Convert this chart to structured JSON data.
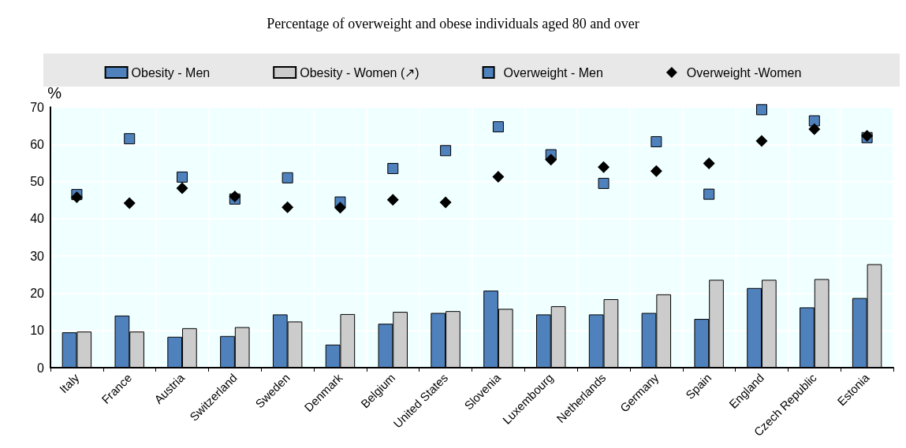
{
  "chart_data": {
    "type": "bar",
    "title": "Percentage of overweight and obese individuals aged 80 and over",
    "ylabel": "%",
    "categories": [
      "Italy",
      "France",
      "Austria",
      "Switzerland",
      "Sweden",
      "Denmark",
      "Belgium",
      "United States",
      "Slovenia",
      "Luxembourg",
      "Netherlands",
      "Germany",
      "Spain",
      "England",
      "Czech Republic",
      "Estonia"
    ],
    "series": [
      {
        "name": "Obesity - Men",
        "color": "#4f81bd",
        "values": [
          9.5,
          14,
          8.3,
          8.5,
          14.3,
          6.2,
          11.8,
          14.7,
          20.7,
          14.3,
          14.3,
          14.7,
          13.1,
          21.4,
          16.2,
          18.7
        ]
      },
      {
        "name": "Obesity - Women (↗)",
        "color": "#cccccc",
        "values": [
          9.7,
          9.7,
          10.6,
          10.9,
          12.4,
          14.4,
          15.0,
          15.2,
          15.8,
          16.5,
          18.4,
          19.7,
          23.6,
          23.6,
          23.8,
          27.8
        ]
      },
      {
        "name": "Overweight - Men",
        "type": "scatter",
        "marker": "square",
        "color": "#4f81bd",
        "values": [
          46.5,
          61.5,
          51.2,
          45.3,
          51.0,
          44.5,
          53.5,
          58.3,
          64.7,
          57.2,
          49.5,
          60.7,
          46.6,
          69.3,
          66.3,
          61.8
        ]
      },
      {
        "name": "Overweight -Women",
        "type": "scatter",
        "marker": "diamond",
        "color": "#000000",
        "values": [
          45.8,
          44.2,
          48.2,
          46.0,
          43.1,
          43.0,
          45.1,
          44.4,
          51.3,
          55.9,
          53.9,
          52.8,
          54.9,
          60.9,
          64.1,
          62.3
        ]
      }
    ],
    "ylim": [
      0,
      70
    ],
    "yticks": [
      0,
      10,
      20,
      30,
      40,
      50,
      60,
      70
    ],
    "grid": true,
    "legend": "top"
  }
}
